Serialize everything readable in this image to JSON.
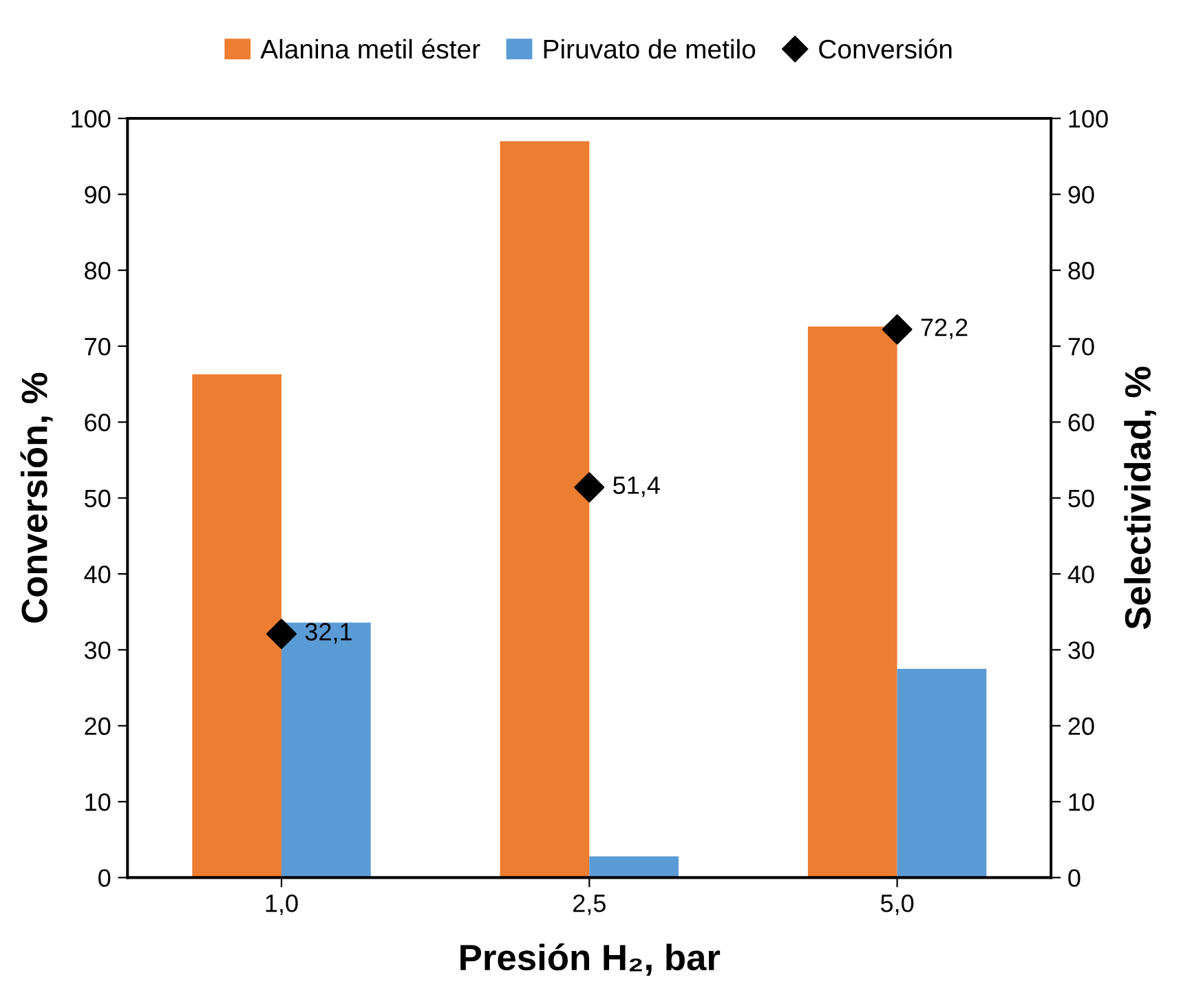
{
  "chart_data": {
    "type": "bar",
    "xlabel": "Presión H₂, bar",
    "ylabel": "Conversión, %",
    "y2label": "Selectividad, %",
    "categories": [
      "1,0",
      "2,5",
      "5,0"
    ],
    "series": [
      {
        "name": "Alanina metil éster",
        "color": "#ed7d31",
        "axis": "y2",
        "values": [
          66.3,
          97.0,
          72.6
        ]
      },
      {
        "name": "Piruvato de metilo",
        "color": "#5b9bd5",
        "axis": "y2",
        "values": [
          33.6,
          2.8,
          27.5
        ]
      },
      {
        "name": "Conversión",
        "type": "scatter",
        "marker": "diamond",
        "color": "#000000",
        "values": [
          32.1,
          51.4,
          72.2
        ],
        "value_labels": [
          "32,1",
          "51,4",
          "72,2"
        ]
      }
    ],
    "ylim": [
      0,
      100
    ],
    "yticks": [
      0,
      10,
      20,
      30,
      40,
      50,
      60,
      70,
      80,
      90,
      100
    ],
    "y2lim": [
      0,
      100
    ],
    "y2ticks": [
      0,
      10,
      20,
      30,
      40,
      50,
      60,
      70,
      80,
      90,
      100
    ],
    "grid": false,
    "legend": "top"
  }
}
